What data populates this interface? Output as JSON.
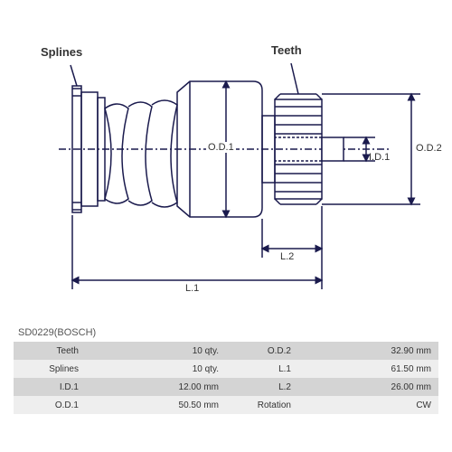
{
  "part_code": "SD0229(BOSCH)",
  "diagram": {
    "labels": {
      "splines": "Splines",
      "teeth": "Teeth",
      "od1": "O.D.1",
      "od2": "O.D.2",
      "id1": "I.D.1",
      "l1": "L.1",
      "l2": "L.2"
    },
    "stroke_color": "#1a1a4d",
    "stroke_width": 1.5,
    "arrow_size": 5
  },
  "specs": [
    {
      "label_l": "Teeth",
      "value_l": "10 qty.",
      "label_r": "O.D.2",
      "value_r": "32.90 mm"
    },
    {
      "label_l": "Splines",
      "value_l": "10 qty.",
      "label_r": "L.1",
      "value_r": "61.50 mm"
    },
    {
      "label_l": "I.D.1",
      "value_l": "12.00 mm",
      "label_r": "L.2",
      "value_r": "26.00 mm"
    },
    {
      "label_l": "O.D.1",
      "value_l": "50.50 mm",
      "label_r": "Rotation",
      "value_r": "CW"
    }
  ],
  "table_colors": {
    "odd": "#d4d4d4",
    "even": "#eeeeee"
  },
  "font": {
    "label_size": 13,
    "dim_size": 11,
    "table_size": 10
  }
}
